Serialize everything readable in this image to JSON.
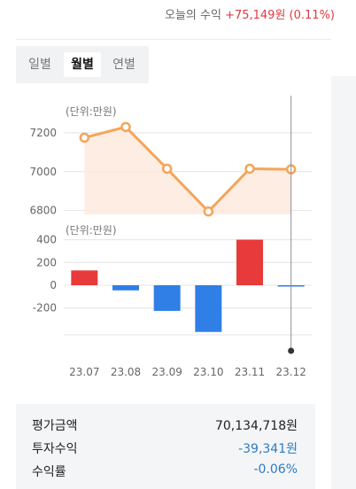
{
  "header": {
    "today_label": "오늘의 수익",
    "today_value": "+75,149원 (0.11%)"
  },
  "tabs": [
    {
      "label": "일별",
      "active": false
    },
    {
      "label": "월별",
      "active": true
    },
    {
      "label": "연별",
      "active": false
    }
  ],
  "colors": {
    "line": "#f2a65a",
    "area": "#fde9dc",
    "positive": "#e83a3a",
    "negative": "#2f7fe6"
  },
  "chart_data": [
    {
      "type": "area",
      "unit_label": "(단위:만원)",
      "categories": [
        "23.07",
        "23.08",
        "23.09",
        "23.10",
        "23.11",
        "23.12"
      ],
      "values": [
        7175,
        7230,
        7015,
        6795,
        7015,
        7012
      ],
      "yticks": [
        7200,
        7000,
        6800
      ],
      "ylim": [
        6780,
        7300
      ]
    },
    {
      "type": "bar",
      "unit_label": "(단위:만원)",
      "categories": [
        "23.07",
        "23.08",
        "23.09",
        "23.10",
        "23.11",
        "23.12"
      ],
      "values": [
        130,
        -45,
        -225,
        -410,
        400,
        -4
      ],
      "yticks": [
        400,
        200,
        0,
        -200
      ],
      "ylim": [
        -420,
        420
      ]
    }
  ],
  "summary": {
    "rows": [
      {
        "label": "평가금액",
        "value": "70,134,718원",
        "negative": false
      },
      {
        "label": "투자수익",
        "value": "-39,341원",
        "negative": true
      },
      {
        "label": "수익률",
        "value": "-0.06%",
        "negative": true
      }
    ]
  }
}
